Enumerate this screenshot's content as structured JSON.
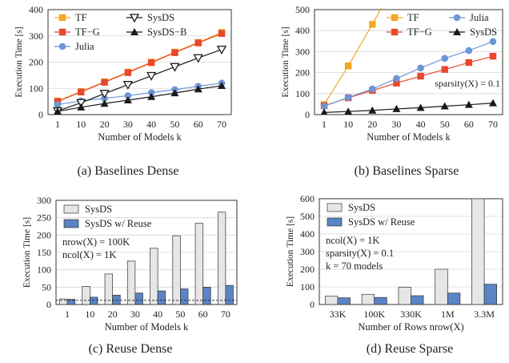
{
  "colors": {
    "tf": "#f5a623",
    "tfg": "#e8482c",
    "julia": "#6f95d6",
    "sysds_gray": "#e6e6e6",
    "sysds_reuse": "#5b84c7",
    "black": "#1a1a1a"
  },
  "chart_data": [
    {
      "type": "line",
      "caption": "(a) Baselines Dense",
      "xlabel": "Number of Models k",
      "ylabel": "Execution Time [s]",
      "categories": [
        "1",
        "10",
        "20",
        "30",
        "40",
        "50",
        "60",
        "70"
      ],
      "ylim": [
        0,
        400
      ],
      "yticks": [
        0,
        100,
        200,
        300,
        400
      ],
      "grid": true,
      "legend_columns": 2,
      "series": [
        {
          "name": "TF",
          "marker": "square",
          "color": "tf",
          "values": [
            52,
            88,
            125,
            162,
            200,
            238,
            275,
            313
          ]
        },
        {
          "name": "TF−G",
          "marker": "square",
          "color": "tfg",
          "values": [
            50,
            86,
            123,
            160,
            198,
            236,
            273,
            309
          ]
        },
        {
          "name": "Julia",
          "marker": "circle",
          "color": "julia",
          "values": [
            38,
            52,
            62,
            72,
            84,
            95,
            108,
            120
          ]
        },
        {
          "name": "SysDS",
          "marker": "tri-open-down",
          "color": "black",
          "values": [
            14,
            45,
            80,
            114,
            148,
            182,
            216,
            248
          ]
        },
        {
          "name": "SysDS−B",
          "marker": "tri-up",
          "color": "black",
          "values": [
            12,
            28,
            42,
            55,
            68,
            82,
            97,
            110
          ]
        }
      ]
    },
    {
      "type": "line",
      "caption": "(b) Baselines Sparse",
      "xlabel": "Number of Models k",
      "ylabel": "Execution Time [s]",
      "categories": [
        "1",
        "10",
        "20",
        "30",
        "40",
        "50",
        "60",
        "70"
      ],
      "ylim": [
        0,
        500
      ],
      "yticks": [
        0,
        100,
        200,
        300,
        400,
        500
      ],
      "grid": true,
      "legend_columns": 2,
      "annotation": "sparsity(X) = 0.1",
      "series": [
        {
          "name": "TF",
          "marker": "square",
          "color": "tf",
          "values": [
            48,
            232,
            430,
            640,
            null,
            null,
            null,
            null
          ]
        },
        {
          "name": "TF−G",
          "marker": "square",
          "color": "tfg",
          "values": [
            42,
            80,
            115,
            150,
            183,
            215,
            248,
            278
          ]
        },
        {
          "name": "Julia",
          "marker": "circle",
          "color": "julia",
          "values": [
            40,
            82,
            122,
            172,
            222,
            268,
            305,
            348
          ]
        },
        {
          "name": "SysDS",
          "marker": "tri-up",
          "color": "black",
          "values": [
            10,
            15,
            20,
            27,
            33,
            40,
            47,
            55
          ]
        }
      ]
    },
    {
      "type": "bar",
      "caption": "(c) Reuse Dense",
      "xlabel": "Number of Models k",
      "ylabel": "Execution Time [s]",
      "categories": [
        "1",
        "10",
        "20",
        "30",
        "40",
        "50",
        "60",
        "70"
      ],
      "ylim": [
        0,
        300
      ],
      "yticks": [
        0,
        50,
        100,
        150,
        200,
        250,
        300
      ],
      "grid": true,
      "reference_line": 12,
      "annotation_lines": [
        "nrow(X) = 100K",
        "ncol(X) = 1K"
      ],
      "series": [
        {
          "name": "SysDS",
          "color": "sysds_gray",
          "values": [
            16,
            52,
            88,
            125,
            162,
            198,
            234,
            266
          ]
        },
        {
          "name": "SysDS w/ Reuse",
          "color": "sysds_reuse",
          "values": [
            15,
            21,
            27,
            33,
            39,
            45,
            50,
            55
          ]
        }
      ]
    },
    {
      "type": "bar",
      "caption": "(d) Reuse Sparse",
      "xlabel": "Number of Rows nrow(X)",
      "ylabel": "Execution Time [s]",
      "categories": [
        "33K",
        "100K",
        "330K",
        "1M",
        "3.3M"
      ],
      "ylim": [
        0,
        600
      ],
      "yticks": [
        0,
        100,
        200,
        300,
        400,
        500,
        600
      ],
      "grid": true,
      "annotation_lines": [
        "ncol(X) = 1K",
        "sparsity(X) = 0.1",
        "k = 70 models"
      ],
      "series": [
        {
          "name": "SysDS",
          "color": "sysds_gray",
          "values": [
            47,
            58,
            98,
            200,
            600
          ]
        },
        {
          "name": "SysDS w/ Reuse",
          "color": "sysds_reuse",
          "values": [
            38,
            40,
            50,
            65,
            115
          ]
        }
      ]
    }
  ]
}
